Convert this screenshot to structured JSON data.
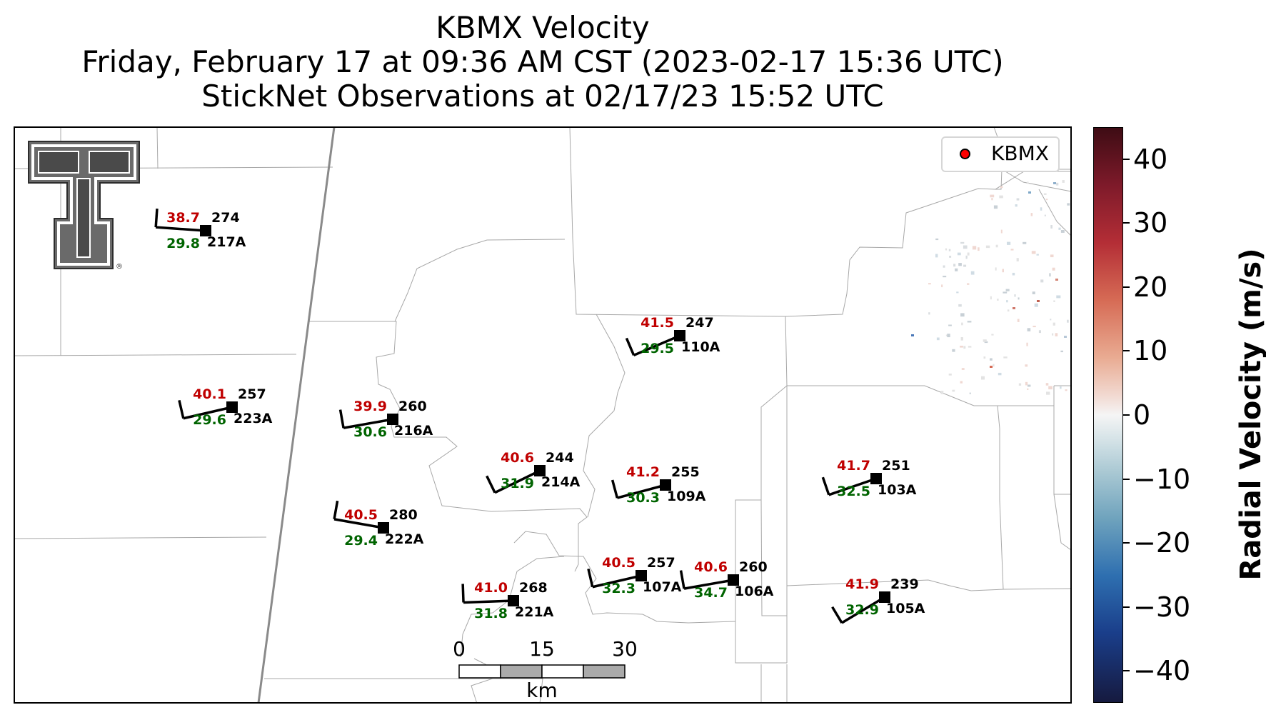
{
  "title": {
    "line1": "KBMX Velocity",
    "line2": "Friday, February 17 at 09:36 AM CST (2023-02-17 15:36 UTC)",
    "line3": "StickNet Observations at 02/17/23 15:52 UTC"
  },
  "legend": {
    "label": "KBMX",
    "marker_color": "#ff0000"
  },
  "colorbar": {
    "label": "Radial Velocity (m/s)",
    "range": [
      -45,
      45
    ],
    "ticks": [
      "40",
      "30",
      "20",
      "10",
      "0",
      "−10",
      "−20",
      "−30",
      "−40"
    ]
  },
  "scale_bar": {
    "ticks": [
      "0",
      "15",
      "30"
    ],
    "unit": "km"
  },
  "logo": {
    "name": "texas-tech-double-t-logo",
    "mark": "®"
  },
  "colors": {
    "temperature": "#c00000",
    "dewpoint": "#006400",
    "station": "#000000"
  },
  "stations": [
    {
      "id": "217A",
      "temp": "38.7",
      "dew": "29.8",
      "dir": "274"
    },
    {
      "id": "223A",
      "temp": "40.1",
      "dew": "29.6",
      "dir": "257"
    },
    {
      "id": "216A",
      "temp": "39.9",
      "dew": "30.6",
      "dir": "260"
    },
    {
      "id": "222A",
      "temp": "40.5",
      "dew": "29.4",
      "dir": "280"
    },
    {
      "id": "214A",
      "temp": "40.6",
      "dew": "31.9",
      "dir": "244"
    },
    {
      "id": "221A",
      "temp": "41.0",
      "dew": "31.8",
      "dir": "268"
    },
    {
      "id": "110A",
      "temp": "41.5",
      "dew": "29.5",
      "dir": "247"
    },
    {
      "id": "109A",
      "temp": "41.2",
      "dew": "30.3",
      "dir": "255"
    },
    {
      "id": "107A",
      "temp": "40.5",
      "dew": "32.3",
      "dir": "257"
    },
    {
      "id": "106A",
      "temp": "40.6",
      "dew": "34.7",
      "dir": "260"
    },
    {
      "id": "103A",
      "temp": "41.7",
      "dew": "32.5",
      "dir": "251"
    },
    {
      "id": "105A",
      "temp": "41.9",
      "dew": "32.9",
      "dir": "239"
    }
  ]
}
